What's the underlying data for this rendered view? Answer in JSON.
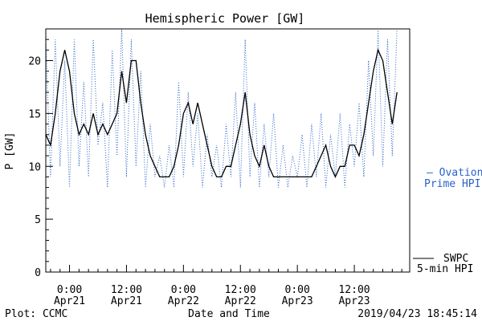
{
  "chart_data": {
    "type": "line",
    "title": "Hemispheric Power [GW]",
    "ylabel": "P [GW]",
    "xlabel": "Date and Time",
    "ylim": [
      0,
      23
    ],
    "xlim": [
      "2019-04-20T19:00",
      "2019-04-23T23:40"
    ],
    "yticks": [
      0,
      5,
      10,
      15,
      20
    ],
    "xticks": [
      {
        "x": "2019-04-21T00:00",
        "line1": "0:00",
        "line2": "Apr21"
      },
      {
        "x": "2019-04-21T12:00",
        "line1": "12:00",
        "line2": "Apr21"
      },
      {
        "x": "2019-04-22T00:00",
        "line1": "0:00",
        "line2": "Apr22"
      },
      {
        "x": "2019-04-22T12:00",
        "line1": "12:00",
        "line2": "Apr22"
      },
      {
        "x": "2019-04-23T00:00",
        "line1": "0:00",
        "line2": "Apr23"
      },
      {
        "x": "2019-04-23T12:00",
        "line1": "12:00",
        "line2": "Apr23"
      }
    ],
    "grid": false,
    "legend_position": "right",
    "series": [
      {
        "name": "SWPC 5-min HPI",
        "color": "#000000",
        "style": "solid",
        "points": [
          [
            "2019-04-20T19:00",
            13
          ],
          [
            "2019-04-20T20:00",
            12
          ],
          [
            "2019-04-20T21:00",
            15
          ],
          [
            "2019-04-20T22:00",
            19
          ],
          [
            "2019-04-20T23:00",
            21
          ],
          [
            "2019-04-21T00:00",
            19
          ],
          [
            "2019-04-21T01:00",
            15
          ],
          [
            "2019-04-21T02:00",
            13
          ],
          [
            "2019-04-21T03:00",
            14
          ],
          [
            "2019-04-21T04:00",
            13
          ],
          [
            "2019-04-21T05:00",
            15
          ],
          [
            "2019-04-21T06:00",
            13
          ],
          [
            "2019-04-21T07:00",
            14
          ],
          [
            "2019-04-21T08:00",
            13
          ],
          [
            "2019-04-21T09:00",
            14
          ],
          [
            "2019-04-21T10:00",
            15
          ],
          [
            "2019-04-21T11:00",
            19
          ],
          [
            "2019-04-21T12:00",
            16
          ],
          [
            "2019-04-21T13:00",
            20
          ],
          [
            "2019-04-21T14:00",
            20
          ],
          [
            "2019-04-21T15:00",
            16
          ],
          [
            "2019-04-21T16:00",
            13
          ],
          [
            "2019-04-21T17:00",
            11
          ],
          [
            "2019-04-21T18:00",
            10
          ],
          [
            "2019-04-21T19:00",
            9
          ],
          [
            "2019-04-21T21:00",
            9
          ],
          [
            "2019-04-21T22:00",
            10
          ],
          [
            "2019-04-21T23:00",
            12
          ],
          [
            "2019-04-22T00:00",
            15
          ],
          [
            "2019-04-22T01:00",
            16
          ],
          [
            "2019-04-22T02:00",
            14
          ],
          [
            "2019-04-22T03:00",
            16
          ],
          [
            "2019-04-22T04:00",
            14
          ],
          [
            "2019-04-22T05:00",
            12
          ],
          [
            "2019-04-22T06:00",
            10
          ],
          [
            "2019-04-22T07:00",
            9
          ],
          [
            "2019-04-22T08:00",
            9
          ],
          [
            "2019-04-22T09:00",
            10
          ],
          [
            "2019-04-22T10:00",
            10
          ],
          [
            "2019-04-22T11:00",
            12
          ],
          [
            "2019-04-22T12:00",
            14
          ],
          [
            "2019-04-22T13:00",
            17
          ],
          [
            "2019-04-22T14:00",
            13
          ],
          [
            "2019-04-22T15:00",
            11
          ],
          [
            "2019-04-22T16:00",
            10
          ],
          [
            "2019-04-22T17:00",
            12
          ],
          [
            "2019-04-22T18:00",
            10
          ],
          [
            "2019-04-22T19:00",
            9
          ],
          [
            "2019-04-23T03:00",
            9
          ],
          [
            "2019-04-23T04:00",
            10
          ],
          [
            "2019-04-23T05:00",
            11
          ],
          [
            "2019-04-23T06:00",
            12
          ],
          [
            "2019-04-23T07:00",
            10
          ],
          [
            "2019-04-23T08:00",
            9
          ],
          [
            "2019-04-23T09:00",
            10
          ],
          [
            "2019-04-23T10:00",
            10
          ],
          [
            "2019-04-23T11:00",
            12
          ],
          [
            "2019-04-23T12:00",
            12
          ],
          [
            "2019-04-23T13:00",
            11
          ],
          [
            "2019-04-23T14:00",
            13
          ],
          [
            "2019-04-23T15:00",
            16
          ],
          [
            "2019-04-23T16:00",
            19
          ],
          [
            "2019-04-23T17:00",
            21
          ],
          [
            "2019-04-23T18:00",
            20
          ],
          [
            "2019-04-23T19:00",
            17
          ],
          [
            "2019-04-23T20:00",
            14
          ],
          [
            "2019-04-23T21:00",
            17
          ]
        ]
      },
      {
        "name": "Ovation Prime HPI",
        "color": "#2a62c9",
        "style": "dotted",
        "points": [
          [
            "2019-04-20T19:00",
            22
          ],
          [
            "2019-04-20T20:00",
            9
          ],
          [
            "2019-04-20T21:00",
            22
          ],
          [
            "2019-04-20T22:00",
            10
          ],
          [
            "2019-04-20T23:00",
            20
          ],
          [
            "2019-04-21T00:00",
            8
          ],
          [
            "2019-04-21T01:00",
            22
          ],
          [
            "2019-04-21T02:00",
            10
          ],
          [
            "2019-04-21T03:00",
            18
          ],
          [
            "2019-04-21T04:00",
            9
          ],
          [
            "2019-04-21T05:00",
            22
          ],
          [
            "2019-04-21T06:00",
            12
          ],
          [
            "2019-04-21T07:00",
            16
          ],
          [
            "2019-04-21T08:00",
            8
          ],
          [
            "2019-04-21T09:00",
            21
          ],
          [
            "2019-04-21T10:00",
            11
          ],
          [
            "2019-04-21T11:00",
            23
          ],
          [
            "2019-04-21T12:00",
            9
          ],
          [
            "2019-04-21T13:00",
            22
          ],
          [
            "2019-04-21T14:00",
            10
          ],
          [
            "2019-04-21T15:00",
            19
          ],
          [
            "2019-04-21T16:00",
            8
          ],
          [
            "2019-04-21T17:00",
            14
          ],
          [
            "2019-04-21T18:00",
            9
          ],
          [
            "2019-04-21T19:00",
            11
          ],
          [
            "2019-04-21T20:00",
            8
          ],
          [
            "2019-04-21T21:00",
            12
          ],
          [
            "2019-04-21T22:00",
            8
          ],
          [
            "2019-04-21T23:00",
            18
          ],
          [
            "2019-04-22T00:00",
            9
          ],
          [
            "2019-04-22T01:00",
            17
          ],
          [
            "2019-04-22T02:00",
            10
          ],
          [
            "2019-04-22T03:00",
            15
          ],
          [
            "2019-04-22T04:00",
            8
          ],
          [
            "2019-04-22T05:00",
            13
          ],
          [
            "2019-04-22T06:00",
            9
          ],
          [
            "2019-04-22T07:00",
            12
          ],
          [
            "2019-04-22T08:00",
            8
          ],
          [
            "2019-04-22T09:00",
            14
          ],
          [
            "2019-04-22T10:00",
            9
          ],
          [
            "2019-04-22T11:00",
            17
          ],
          [
            "2019-04-22T12:00",
            8
          ],
          [
            "2019-04-22T13:00",
            22
          ],
          [
            "2019-04-22T14:00",
            9
          ],
          [
            "2019-04-22T15:00",
            16
          ],
          [
            "2019-04-22T16:00",
            8
          ],
          [
            "2019-04-22T17:00",
            14
          ],
          [
            "2019-04-22T18:00",
            9
          ],
          [
            "2019-04-22T19:00",
            15
          ],
          [
            "2019-04-22T20:00",
            8
          ],
          [
            "2019-04-22T21:00",
            12
          ],
          [
            "2019-04-22T22:00",
            8
          ],
          [
            "2019-04-22T23:00",
            11
          ],
          [
            "2019-04-23T00:00",
            9
          ],
          [
            "2019-04-23T01:00",
            13
          ],
          [
            "2019-04-23T02:00",
            8
          ],
          [
            "2019-04-23T03:00",
            14
          ],
          [
            "2019-04-23T04:00",
            9
          ],
          [
            "2019-04-23T05:00",
            15
          ],
          [
            "2019-04-23T06:00",
            8
          ],
          [
            "2019-04-23T07:00",
            13
          ],
          [
            "2019-04-23T08:00",
            9
          ],
          [
            "2019-04-23T09:00",
            15
          ],
          [
            "2019-04-23T10:00",
            8
          ],
          [
            "2019-04-23T11:00",
            14
          ],
          [
            "2019-04-23T12:00",
            10
          ],
          [
            "2019-04-23T13:00",
            16
          ],
          [
            "2019-04-23T14:00",
            9
          ],
          [
            "2019-04-23T15:00",
            20
          ],
          [
            "2019-04-23T16:00",
            11
          ],
          [
            "2019-04-23T17:00",
            23
          ],
          [
            "2019-04-23T18:00",
            10
          ],
          [
            "2019-04-23T19:00",
            22
          ],
          [
            "2019-04-23T20:00",
            11
          ],
          [
            "2019-04-23T21:00",
            23
          ]
        ]
      }
    ],
    "legend": {
      "ovation_line1": "— Ovation",
      "ovation_line2": "Prime HPI",
      "swpc_line1": "SWPC",
      "swpc_line2": "5-min HPI"
    }
  },
  "footer": {
    "plot_credit": "Plot: CCMC",
    "timestamp": "2019/04/23 18:45:14"
  }
}
